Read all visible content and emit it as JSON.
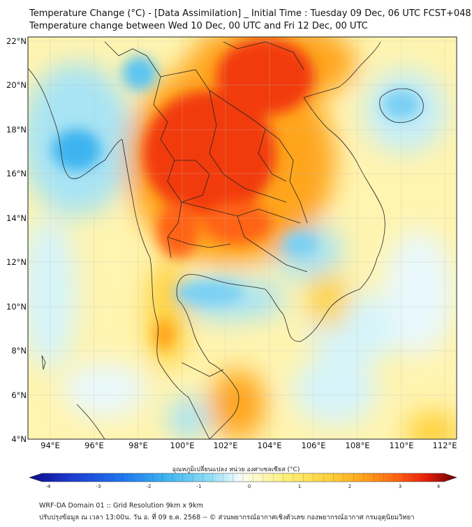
{
  "title": {
    "line1": "Temperature Change (°C) - [Data Assimilation] _ Initial Time : Tuesday 09 Dec, 06 UTC FCST+048",
    "line2": "Temperature change between Wed 10 Dec, 00 UTC and Fri 12 Dec, 00 UTC"
  },
  "map": {
    "lat_labels": [
      "22°N",
      "20°N",
      "18°N",
      "16°N",
      "14°N",
      "12°N",
      "10°N",
      "8°N",
      "6°N",
      "4°N"
    ],
    "lon_labels": [
      "94°E",
      "96°E",
      "98°E",
      "100°E",
      "102°E",
      "104°E",
      "106°E",
      "108°E",
      "110°E",
      "112°E"
    ],
    "lat_range": [
      4,
      22.2
    ],
    "lon_range": [
      93,
      112.6
    ]
  },
  "colorbar": {
    "title": "อุณหภูมิเปลี่ยนแปลง หน่วย องศาเซลเซียส (°C)",
    "ticks": [
      "-4",
      "-3",
      "-2",
      "-1",
      "0",
      "1",
      "2",
      "3",
      "4"
    ],
    "min": -4,
    "max": 4,
    "colors": [
      "#0a0a8c",
      "#1e3cd2",
      "#1e78f0",
      "#3cb4f0",
      "#8edcf5",
      "#d8f4fa",
      "#ffffff",
      "#fffbd0",
      "#fff07a",
      "#ffd23c",
      "#ffa51e",
      "#ff6414",
      "#e61e0a",
      "#a00a0a",
      "#640000"
    ]
  },
  "footer": {
    "line1": "WRF-DA Domain 01 :: Grid Resolution 9km x 9km",
    "line2": "ปรับปรุงข้อมูล ณ เวลา 13:00น. วัน อ. ที่ 09 ธ.ค. 2568 -- © ส่วนพยากรณ์อากาศเชิงตัวเลข กองพยากรณ์อากาศ กรมอุตุนิยมวิทยา"
  }
}
